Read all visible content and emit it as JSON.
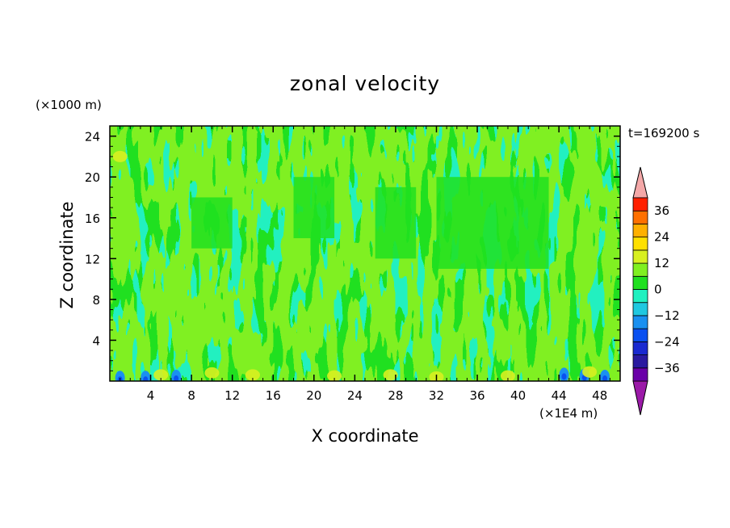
{
  "chart_data": {
    "type": "heatmap",
    "title": "zonal velocity",
    "xlabel": "X coordinate",
    "ylabel": "Z coordinate",
    "x_unit": "(×1E4 m)",
    "y_unit": "(×1000 m)",
    "time_label": "t=169200 s",
    "xlim": [
      0,
      50
    ],
    "ylim": [
      0,
      25
    ],
    "x_ticks": [
      4,
      8,
      12,
      16,
      20,
      24,
      28,
      32,
      36,
      40,
      44,
      48
    ],
    "y_ticks": [
      4,
      8,
      12,
      16,
      20,
      24
    ],
    "colorbar": {
      "levels": [
        -42,
        -36,
        -30,
        -24,
        -18,
        -12,
        -6,
        0,
        6,
        12,
        18,
        24,
        30,
        36,
        42
      ],
      "tick_labels": [
        -36,
        -24,
        -12,
        0,
        12,
        24,
        36
      ],
      "extend": "both",
      "colors": [
        "#6a00a8",
        "#2a1aa0",
        "#1a2ad0",
        "#0a50f0",
        "#1a90f0",
        "#20c8e0",
        "#20f0c0",
        "#20e020",
        "#80f020",
        "#d8f020",
        "#ffe000",
        "#ffb000",
        "#ff7000",
        "#ff2000"
      ],
      "under_color": "#9b1aa8",
      "over_color": "#f4a8a8"
    },
    "field_summary": {
      "range": [
        -20,
        14
      ],
      "dominant_levels": [
        -12,
        -6,
        0,
        6
      ],
      "notes": [
        "0 to 6 band in upper region 12-21 km",
        "-6 to 0 in lower region",
        "strong negative spots near z<1 km"
      ]
    }
  }
}
